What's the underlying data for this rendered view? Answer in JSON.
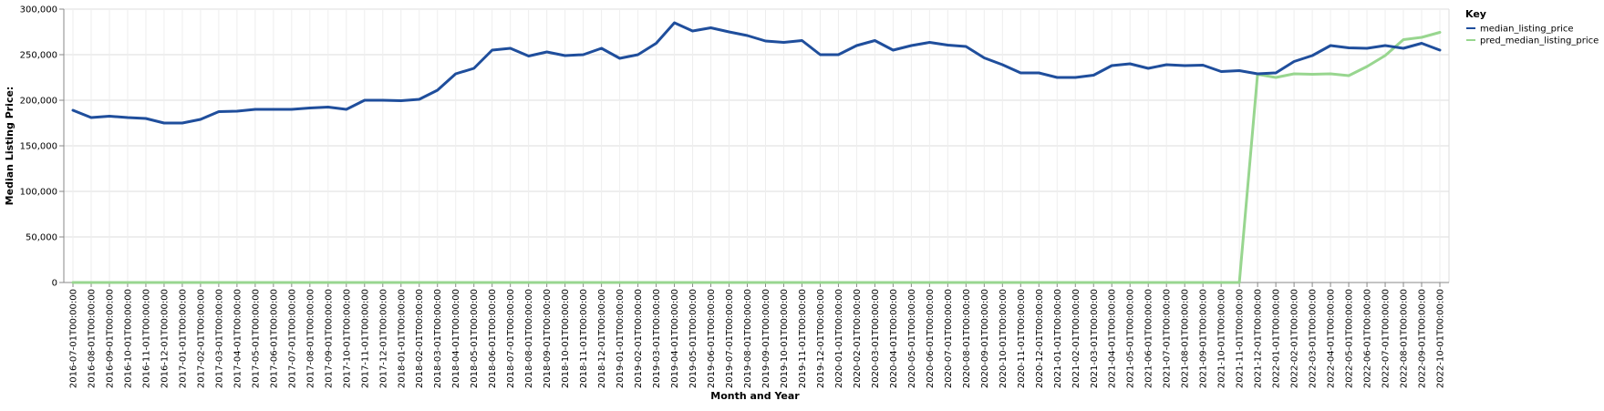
{
  "chart_data": {
    "type": "line",
    "xlabel": "Month and Year",
    "ylabel": "Median Listing Price:",
    "ylim": [
      0,
      300000
    ],
    "y_ticks": [
      "0",
      "50,000",
      "100,000",
      "150,000",
      "200,000",
      "250,000",
      "300,000"
    ],
    "grid": true,
    "legend": {
      "title": "Key",
      "placement": "top-right"
    },
    "categories": [
      "2016-07-01T00:00:00",
      "2016-08-01T00:00:00",
      "2016-09-01T00:00:00",
      "2016-10-01T00:00:00",
      "2016-11-01T00:00:00",
      "2016-12-01T00:00:00",
      "2017-01-01T00:00:00",
      "2017-02-01T00:00:00",
      "2017-03-01T00:00:00",
      "2017-04-01T00:00:00",
      "2017-05-01T00:00:00",
      "2017-06-01T00:00:00",
      "2017-07-01T00:00:00",
      "2017-08-01T00:00:00",
      "2017-09-01T00:00:00",
      "2017-10-01T00:00:00",
      "2017-11-01T00:00:00",
      "2017-12-01T00:00:00",
      "2018-01-01T00:00:00",
      "2018-02-01T00:00:00",
      "2018-03-01T00:00:00",
      "2018-04-01T00:00:00",
      "2018-05-01T00:00:00",
      "2018-06-01T00:00:00",
      "2018-07-01T00:00:00",
      "2018-08-01T00:00:00",
      "2018-09-01T00:00:00",
      "2018-10-01T00:00:00",
      "2018-11-01T00:00:00",
      "2018-12-01T00:00:00",
      "2019-01-01T00:00:00",
      "2019-02-01T00:00:00",
      "2019-03-01T00:00:00",
      "2019-04-01T00:00:00",
      "2019-05-01T00:00:00",
      "2019-06-01T00:00:00",
      "2019-07-01T00:00:00",
      "2019-08-01T00:00:00",
      "2019-09-01T00:00:00",
      "2019-10-01T00:00:00",
      "2019-11-01T00:00:00",
      "2019-12-01T00:00:00",
      "2020-01-01T00:00:00",
      "2020-02-01T00:00:00",
      "2020-03-01T00:00:00",
      "2020-04-01T00:00:00",
      "2020-05-01T00:00:00",
      "2020-06-01T00:00:00",
      "2020-07-01T00:00:00",
      "2020-08-01T00:00:00",
      "2020-09-01T00:00:00",
      "2020-10-01T00:00:00",
      "2020-11-01T00:00:00",
      "2020-12-01T00:00:00",
      "2021-01-01T00:00:00",
      "2021-02-01T00:00:00",
      "2021-03-01T00:00:00",
      "2021-04-01T00:00:00",
      "2021-05-01T00:00:00",
      "2021-06-01T00:00:00",
      "2021-07-01T00:00:00",
      "2021-08-01T00:00:00",
      "2021-09-01T00:00:00",
      "2021-10-01T00:00:00",
      "2021-11-01T00:00:00",
      "2021-12-01T00:00:00",
      "2022-01-01T00:00:00",
      "2022-02-01T00:00:00",
      "2022-03-01T00:00:00",
      "2022-04-01T00:00:00",
      "2022-05-01T00:00:00",
      "2022-06-01T00:00:00",
      "2022-07-01T00:00:00",
      "2022-08-01T00:00:00",
      "2022-09-01T00:00:00",
      "2022-10-01T00:00:00"
    ],
    "series": [
      {
        "name": "median_listing_price",
        "color": "#1f4e9c",
        "values": [
          189000,
          181000,
          182500,
          181000,
          180000,
          175000,
          175000,
          179000,
          187500,
          188000,
          190000,
          190000,
          190000,
          191500,
          192500,
          190000,
          200000,
          200000,
          199500,
          201000,
          211000,
          229000,
          235000,
          255000,
          257000,
          248500,
          253000,
          249000,
          250000,
          257000,
          246000,
          250000,
          262500,
          285000,
          276000,
          279500,
          275000,
          271000,
          265000,
          263500,
          265500,
          250000,
          250000,
          260000,
          265500,
          255000,
          260000,
          263500,
          260500,
          259000,
          246500,
          239000,
          230000,
          230000,
          225000,
          225000,
          227500,
          238000,
          240000,
          235000,
          239000,
          238000,
          238500,
          231500,
          232500,
          229000,
          230000,
          242500,
          249000,
          260000,
          257500,
          257000,
          260000,
          257000,
          262500,
          255000
        ]
      },
      {
        "name": "pred_median_listing_price",
        "color": "#98d68f",
        "values": [
          0,
          0,
          0,
          0,
          0,
          0,
          0,
          0,
          0,
          0,
          0,
          0,
          0,
          0,
          0,
          0,
          0,
          0,
          0,
          0,
          0,
          0,
          0,
          0,
          0,
          0,
          0,
          0,
          0,
          0,
          0,
          0,
          0,
          0,
          0,
          0,
          0,
          0,
          0,
          0,
          0,
          0,
          0,
          0,
          0,
          0,
          0,
          0,
          0,
          0,
          0,
          0,
          0,
          0,
          0,
          0,
          0,
          0,
          0,
          0,
          0,
          0,
          0,
          0,
          0,
          228500,
          225000,
          229000,
          228500,
          229000,
          227000,
          237000,
          249000,
          266500,
          269000,
          274500
        ]
      }
    ]
  }
}
